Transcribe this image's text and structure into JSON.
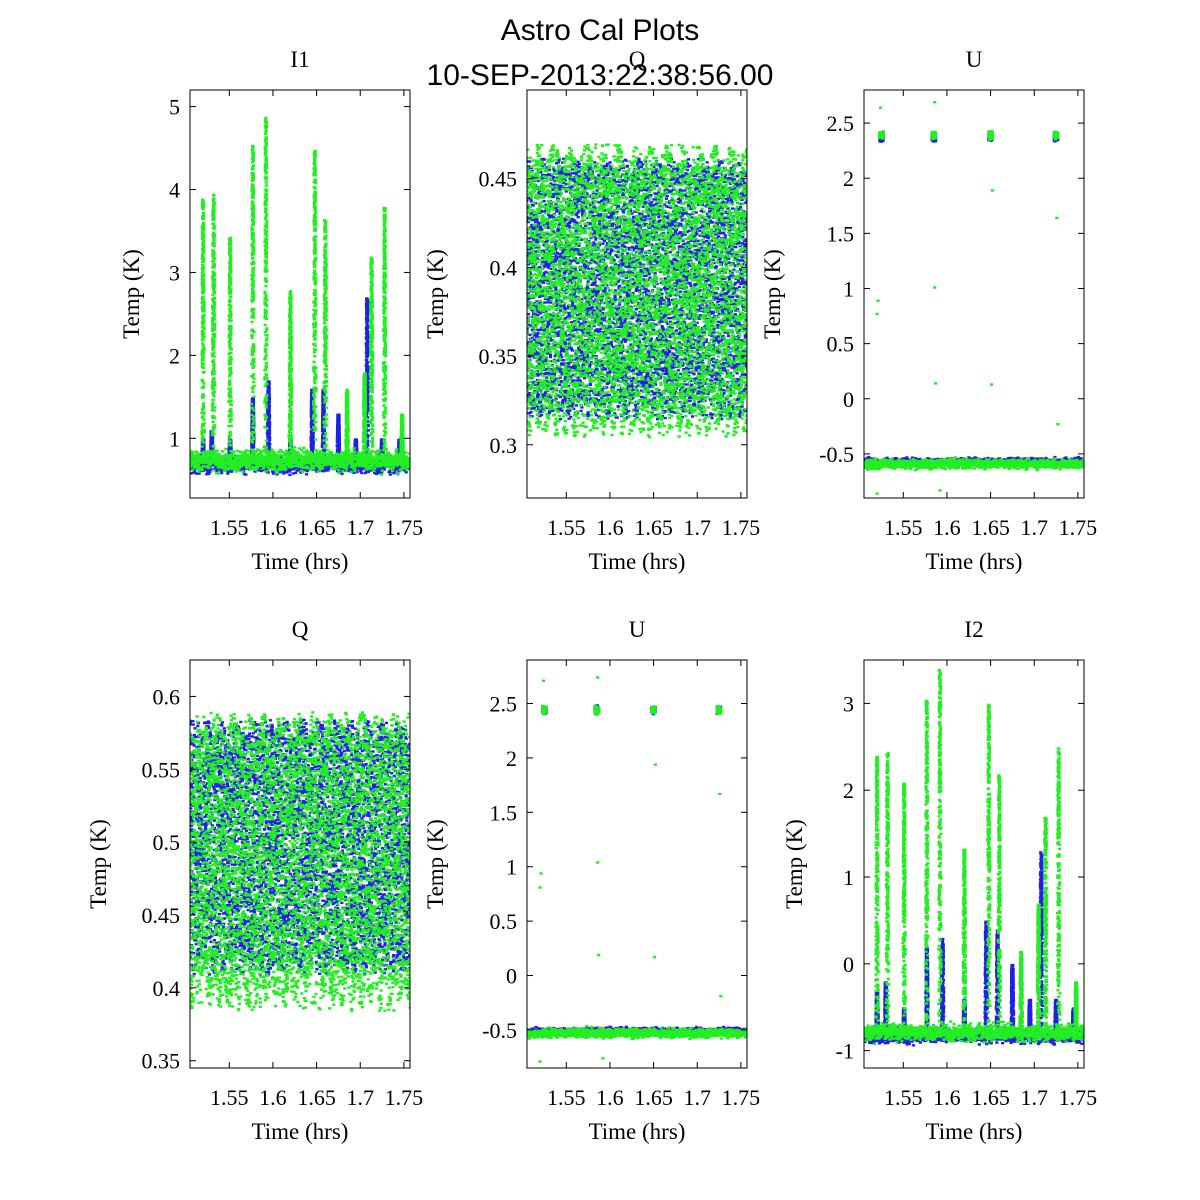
{
  "figure": {
    "title_line1": "Astro Cal Plots",
    "title_line2": "10-SEP-2013:22:38:56.00"
  },
  "colors": {
    "series_a": "#1f1fe6",
    "series_b": "#22ee22",
    "axes": "#000000"
  },
  "chart_data": [
    {
      "type": "scatter",
      "title": "I1",
      "xlabel": "Time (hrs)",
      "ylabel": "Temp (K)",
      "xlim": [
        1.505,
        1.757
      ],
      "ylim": [
        0.28,
        5.2
      ],
      "xticks": [
        1.55,
        1.6,
        1.65,
        1.7,
        1.75
      ],
      "xtick_labels": [
        "1.55",
        "1.6",
        "1.65",
        "1.7",
        "1.75"
      ],
      "yticks": [
        1,
        2,
        3,
        4,
        5
      ],
      "ytick_labels": [
        "1",
        "2",
        "3",
        "4",
        "5"
      ],
      "series": [
        {
          "name": "blue",
          "baseline": 0.7,
          "spread": 0.16,
          "spikes": [
            1.52,
            1.53,
            1.551,
            1.577,
            1.595,
            1.62,
            1.645,
            1.658,
            1.675,
            1.695,
            1.708,
            1.725,
            1.745
          ],
          "spike_peaks": [
            1.0,
            1.1,
            1.0,
            1.5,
            1.7,
            1.0,
            1.6,
            1.6,
            1.3,
            1.0,
            2.7,
            1.0,
            1.0
          ]
        },
        {
          "name": "green",
          "baseline": 0.75,
          "spread": 0.2,
          "spikes": [
            1.52,
            1.532,
            1.551,
            1.577,
            1.592,
            1.62,
            1.648,
            1.66,
            1.685,
            1.705,
            1.713,
            1.728,
            1.748
          ],
          "spike_peaks": [
            3.9,
            3.95,
            3.45,
            4.55,
            4.9,
            2.8,
            4.5,
            3.65,
            1.6,
            1.8,
            3.2,
            3.8,
            1.3
          ]
        }
      ]
    },
    {
      "type": "scatter",
      "title": "Q",
      "xlabel": "Time (hrs)",
      "ylabel": "Temp (K)",
      "xlim": [
        1.505,
        1.757
      ],
      "ylim": [
        0.27,
        0.5
      ],
      "xticks": [
        1.55,
        1.6,
        1.65,
        1.7,
        1.75
      ],
      "xtick_labels": [
        "1.55",
        "1.6",
        "1.65",
        "1.7",
        "1.75"
      ],
      "yticks": [
        0.3,
        0.35,
        0.4,
        0.45
      ],
      "ytick_labels": [
        "0.3",
        "0.35",
        "0.4",
        "0.45"
      ],
      "series": [
        {
          "name": "blue",
          "band_low": 0.315,
          "band_high": 0.462,
          "core_low": 0.345,
          "core_high": 0.44
        },
        {
          "name": "green",
          "band_low": 0.305,
          "band_high": 0.47,
          "core_low": 0.35,
          "core_high": 0.435
        }
      ]
    },
    {
      "type": "scatter",
      "title": "U",
      "xlabel": "Time (hrs)",
      "ylabel": "Temp (K)",
      "xlim": [
        1.505,
        1.757
      ],
      "ylim": [
        -0.9,
        2.8
      ],
      "xticks": [
        1.55,
        1.6,
        1.65,
        1.7,
        1.75
      ],
      "xtick_labels": [
        "1.55",
        "1.6",
        "1.65",
        "1.7",
        "1.75"
      ],
      "yticks": [
        -0.5,
        0,
        0.5,
        1,
        1.5,
        2,
        2.5
      ],
      "ytick_labels": [
        "-0.5",
        "0",
        "0.5",
        "1",
        "1.5",
        "2",
        "2.5"
      ],
      "series": [
        {
          "name": "blue",
          "baseline": -0.56,
          "spread": 0.05,
          "clusters": [
            1.525,
            1.585,
            1.65,
            1.725
          ],
          "cluster_value": 2.38
        },
        {
          "name": "green",
          "baseline": -0.58,
          "spread": 0.07,
          "clusters": [
            1.525,
            1.585,
            1.65,
            1.725
          ],
          "cluster_value": 2.4,
          "outliers": [
            [
              1.524,
              2.65
            ],
            [
              1.586,
              2.7
            ],
            [
              1.521,
              0.9
            ],
            [
              1.52,
              0.78
            ],
            [
              1.586,
              1.02
            ],
            [
              1.587,
              0.15
            ],
            [
              1.651,
              0.14
            ],
            [
              1.652,
              1.9
            ],
            [
              1.726,
              1.65
            ],
            [
              1.727,
              -0.22
            ],
            [
              1.52,
              -0.85
            ],
            [
              1.592,
              -0.82
            ]
          ]
        }
      ]
    },
    {
      "type": "scatter",
      "title": "Q",
      "xlabel": "Time (hrs)",
      "ylabel": "Temp (K)",
      "xlim": [
        1.505,
        1.757
      ],
      "ylim": [
        0.345,
        0.625
      ],
      "xticks": [
        1.55,
        1.6,
        1.65,
        1.7,
        1.75
      ],
      "xtick_labels": [
        "1.55",
        "1.6",
        "1.65",
        "1.7",
        "1.75"
      ],
      "yticks": [
        0.35,
        0.4,
        0.45,
        0.5,
        0.55,
        0.6
      ],
      "ytick_labels": [
        "0.35",
        "0.4",
        "0.45",
        "0.5",
        "0.55",
        "0.6"
      ],
      "series": [
        {
          "name": "blue",
          "band_low": 0.41,
          "band_high": 0.585,
          "core_low": 0.44,
          "core_high": 0.555
        },
        {
          "name": "green",
          "band_low": 0.385,
          "band_high": 0.59,
          "core_low": 0.445,
          "core_high": 0.55
        }
      ]
    },
    {
      "type": "scatter",
      "title": "U",
      "xlabel": "Time (hrs)",
      "ylabel": "Temp (K)",
      "xlim": [
        1.505,
        1.757
      ],
      "ylim": [
        -0.85,
        2.9
      ],
      "xticks": [
        1.55,
        1.6,
        1.65,
        1.7,
        1.75
      ],
      "xtick_labels": [
        "1.55",
        "1.6",
        "1.65",
        "1.7",
        "1.75"
      ],
      "yticks": [
        -0.5,
        0,
        0.5,
        1,
        1.5,
        2,
        2.5
      ],
      "ytick_labels": [
        "-0.5",
        "0",
        "0.5",
        "1",
        "1.5",
        "2",
        "2.5"
      ],
      "series": [
        {
          "name": "blue",
          "baseline": -0.5,
          "spread": 0.05,
          "clusters": [
            1.525,
            1.585,
            1.65,
            1.725
          ],
          "cluster_value": 2.45
        },
        {
          "name": "green",
          "baseline": -0.52,
          "spread": 0.07,
          "clusters": [
            1.525,
            1.585,
            1.65,
            1.725
          ],
          "cluster_value": 2.45,
          "outliers": [
            [
              1.524,
              2.72
            ],
            [
              1.586,
              2.75
            ],
            [
              1.521,
              0.95
            ],
            [
              1.52,
              0.82
            ],
            [
              1.586,
              1.05
            ],
            [
              1.587,
              0.2
            ],
            [
              1.651,
              0.18
            ],
            [
              1.652,
              1.95
            ],
            [
              1.726,
              1.68
            ],
            [
              1.727,
              -0.18
            ],
            [
              1.52,
              -0.78
            ],
            [
              1.592,
              -0.75
            ]
          ]
        }
      ]
    },
    {
      "type": "scatter",
      "title": "I2",
      "xlabel": "Time (hrs)",
      "ylabel": "Temp (K)",
      "xlim": [
        1.505,
        1.757
      ],
      "ylim": [
        -1.2,
        3.5
      ],
      "xticks": [
        1.55,
        1.6,
        1.65,
        1.7,
        1.75
      ],
      "xtick_labels": [
        "1.55",
        "1.6",
        "1.65",
        "1.7",
        "1.75"
      ],
      "yticks": [
        -1,
        0,
        1,
        2,
        3
      ],
      "ytick_labels": [
        "-1",
        "0",
        "1",
        "2",
        "3"
      ],
      "series": [
        {
          "name": "blue",
          "baseline": -0.82,
          "spread": 0.12,
          "spikes": [
            1.52,
            1.53,
            1.551,
            1.577,
            1.595,
            1.62,
            1.645,
            1.658,
            1.675,
            1.695,
            1.708,
            1.725,
            1.745
          ],
          "spike_peaks": [
            -0.3,
            -0.2,
            -0.5,
            0.2,
            0.3,
            -0.4,
            0.5,
            0.4,
            0.0,
            -0.4,
            1.3,
            -0.4,
            -0.5
          ]
        },
        {
          "name": "green",
          "baseline": -0.78,
          "spread": 0.15,
          "spikes": [
            1.52,
            1.532,
            1.551,
            1.577,
            1.592,
            1.62,
            1.648,
            1.66,
            1.685,
            1.705,
            1.713,
            1.728,
            1.748
          ],
          "spike_peaks": [
            2.4,
            2.45,
            2.1,
            3.05,
            3.4,
            1.35,
            3.0,
            2.2,
            0.15,
            0.7,
            1.7,
            2.5,
            -0.2
          ]
        }
      ]
    }
  ]
}
